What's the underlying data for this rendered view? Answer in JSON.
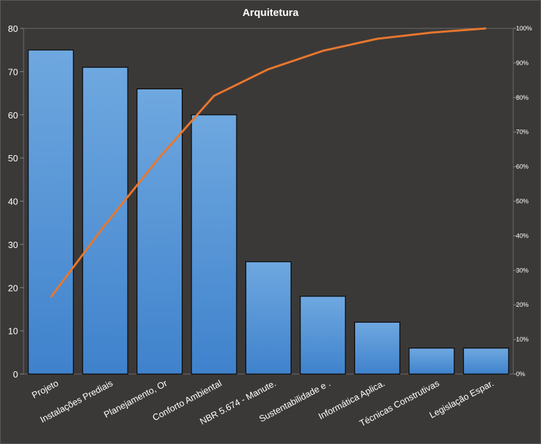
{
  "chart_data": {
    "type": "bar",
    "title": "Arquitetura",
    "categories": [
      "Projeto",
      "Instalações Prediais",
      "Planejamento, Or",
      "Conforto Ambiental",
      "NBR 5.674 - Manute.",
      "Sustentabilidade e .",
      "Informática Aplica.",
      "Técnicas Construtivas",
      "Legislação Espar."
    ],
    "series": [
      {
        "type": "bar",
        "values": [
          75,
          71,
          66,
          60,
          26,
          18,
          12,
          6,
          6
        ]
      },
      {
        "type": "line",
        "axis": "secondary",
        "values": [
          22.2,
          43.2,
          62.7,
          80.5,
          88.2,
          93.5,
          97.0,
          98.8,
          100.0
        ]
      }
    ],
    "ylim": [
      0,
      80
    ],
    "y_ticks": [
      0,
      10,
      20,
      30,
      40,
      50,
      60,
      70,
      80
    ],
    "y2lim": [
      0,
      100
    ],
    "y2_ticks": [
      "0%",
      "10%",
      "20%",
      "30%",
      "40%",
      "50%",
      "60%",
      "70%",
      "80%",
      "90%",
      "100%"
    ],
    "bar_color": "#4f8fd6",
    "line_color": "#e8772e",
    "background": "#3b3938",
    "grid": false,
    "legend": "none"
  }
}
